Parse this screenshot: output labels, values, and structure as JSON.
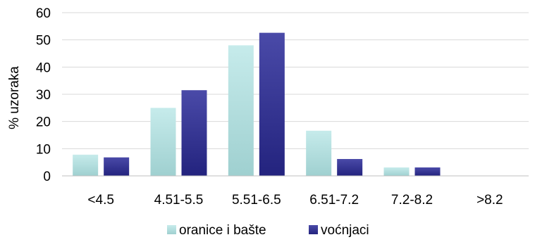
{
  "chart_data": {
    "type": "bar",
    "ylabel": "% uzoraka",
    "xlabel": "",
    "ylim": [
      0,
      60
    ],
    "yticks": [
      0,
      10,
      20,
      30,
      40,
      50,
      60
    ],
    "grid": true,
    "legend_position": "bottom",
    "categories": [
      "<4.5",
      "4.51-5.5",
      "5.51-6.5",
      "6.51-7.2",
      "7.2-8.2",
      ">8.2"
    ],
    "series": [
      {
        "name": "oranice i bašte",
        "color": "#bfe5e5",
        "values": [
          7.8,
          25,
          48,
          16.6,
          3.1,
          0
        ]
      },
      {
        "name": "voćnjaci",
        "color": "#2f2f8f",
        "values": [
          6.8,
          31.5,
          52.6,
          6.2,
          3.1,
          0
        ]
      }
    ]
  }
}
